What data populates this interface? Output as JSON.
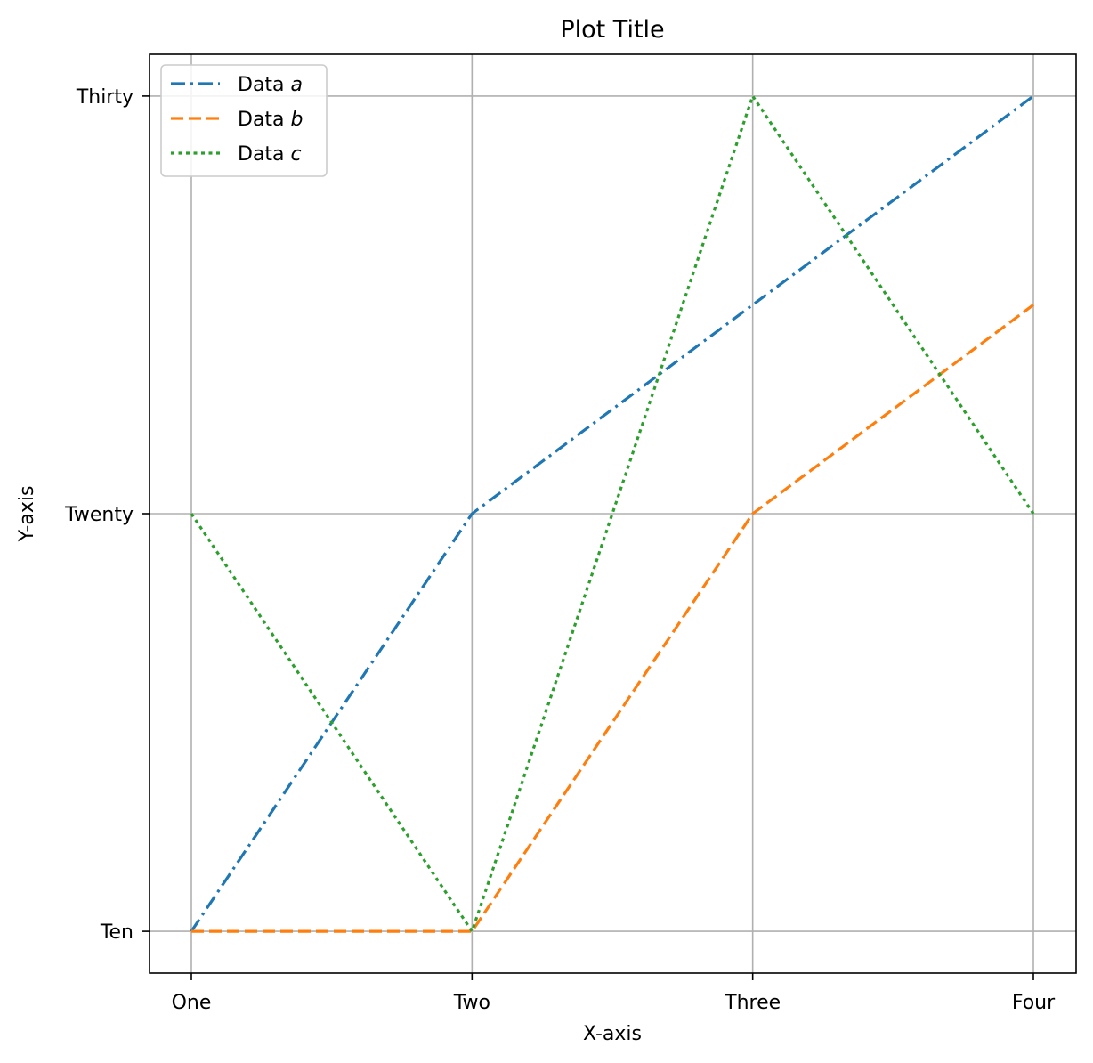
{
  "chart_data": {
    "type": "line",
    "title": "Plot Title",
    "xlabel": "X-axis",
    "ylabel": "Y-axis",
    "categories": [
      "One",
      "Two",
      "Three",
      "Four"
    ],
    "y_ticks": [
      {
        "value": 10,
        "label": "Ten"
      },
      {
        "value": 20,
        "label": "Twenty"
      },
      {
        "value": 30,
        "label": "Thirty"
      }
    ],
    "ylim": [
      9,
      31
    ],
    "grid": true,
    "legend_position": "top-left",
    "series": [
      {
        "name": "Data a",
        "name_prefix": "Data ",
        "name_var": "a",
        "values": [
          10,
          20,
          25,
          30
        ],
        "color": "#1f77b4",
        "style": "dashdot"
      },
      {
        "name": "Data b",
        "name_prefix": "Data ",
        "name_var": "b",
        "values": [
          10,
          10,
          20,
          25
        ],
        "color": "#ff7f0e",
        "style": "dashed"
      },
      {
        "name": "Data c",
        "name_prefix": "Data ",
        "name_var": "c",
        "values": [
          20,
          10,
          30,
          20
        ],
        "color": "#2ca02c",
        "style": "dotted"
      }
    ]
  }
}
